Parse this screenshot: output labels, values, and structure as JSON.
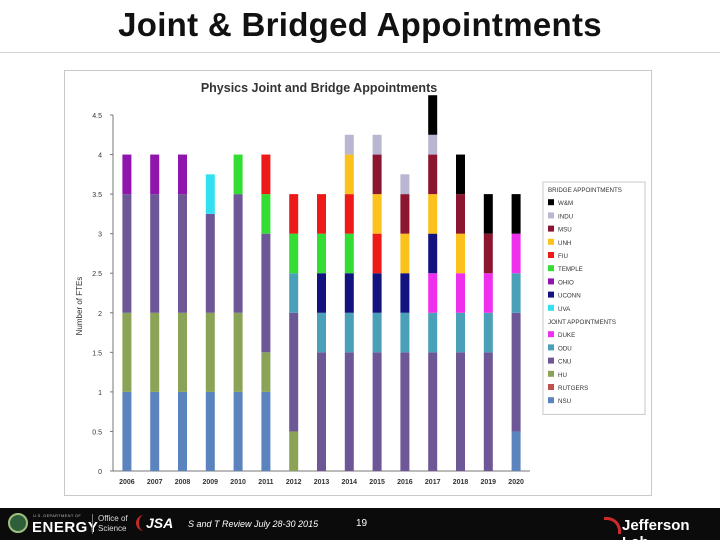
{
  "slide": {
    "title": "Joint & Bridged Appointments"
  },
  "footer": {
    "doe_small": "U.S. DEPARTMENT OF",
    "doe_word": "ENERGY",
    "office_line1": "Office of",
    "office_line2": "Science",
    "jsa": "JSA",
    "text": "S and T Review July 28-30 2015",
    "page": "19",
    "lab": "Jefferson Lab"
  },
  "colors": {
    "NSU": "#5b84be",
    "RUTGERS": "#c0504d",
    "HU": "#8ba357",
    "CNU": "#6e5797",
    "ODU": "#4aa0b8",
    "DUKE": "#ee2fee",
    "UVA": "#33e0f0",
    "UCONN": "#13137f",
    "OHIO": "#8f15ad",
    "TEMPLE": "#33dd33",
    "FIU": "#ee1a1a",
    "UNH": "#fbc11c",
    "MSU": "#8c1630",
    "INDU": "#b9b6d2",
    "W&M": "#000000"
  },
  "chart_data": {
    "type": "bar",
    "stacked": true,
    "title": "Physics Joint and Bridge Appointments",
    "xlabel": "",
    "ylabel": "Number of FTEs",
    "ylim": [
      0,
      4.5
    ],
    "y_ticks": [
      "0",
      "0.5",
      "1",
      "1.5",
      "2",
      "2.5",
      "3",
      "3.5",
      "4",
      "4.5"
    ],
    "categories": [
      "2006",
      "2007",
      "2008",
      "2009",
      "2010",
      "2011",
      "2012",
      "2013",
      "2014",
      "2015",
      "2016",
      "2017",
      "2018",
      "2019",
      "2020"
    ],
    "grid": false,
    "legend_placement": "right",
    "legend_groups": [
      {
        "heading": "BRIDGE APPOINTMENTS",
        "items": [
          "W&M",
          "INDU",
          "MSU",
          "UNH",
          "FIU",
          "TEMPLE",
          "OHIO",
          "UCONN",
          "UVA"
        ]
      },
      {
        "heading": "JOINT APPOINTMENTS",
        "items": [
          "DUKE",
          "ODU",
          "CNU",
          "HU",
          "RUTGERS",
          "NSU"
        ]
      }
    ],
    "series": [
      {
        "name": "NSU",
        "values": [
          1,
          1,
          1,
          1,
          1,
          1,
          0,
          0,
          0,
          0,
          0,
          0,
          0,
          0,
          0.5
        ]
      },
      {
        "name": "RUTGERS",
        "values": [
          0,
          0,
          0,
          0,
          0,
          0,
          0,
          0,
          0,
          0,
          0,
          0,
          0,
          0,
          0
        ]
      },
      {
        "name": "HU",
        "values": [
          1,
          1,
          1,
          1,
          1,
          0.5,
          0.5,
          0,
          0,
          0,
          0,
          0,
          0,
          0,
          0
        ]
      },
      {
        "name": "CNU",
        "values": [
          1.5,
          1.5,
          1.5,
          1.25,
          1.5,
          1.5,
          1.5,
          1.5,
          1.5,
          1.5,
          1.5,
          1.5,
          1.5,
          1.5,
          1.5
        ]
      },
      {
        "name": "ODU",
        "values": [
          0,
          0,
          0,
          0,
          0,
          0,
          0.5,
          0.5,
          0.5,
          0.5,
          0.5,
          0.5,
          0.5,
          0.5,
          0.5
        ]
      },
      {
        "name": "DUKE",
        "values": [
          0,
          0,
          0,
          0,
          0,
          0,
          0,
          0,
          0,
          0,
          0,
          0.5,
          0.5,
          0.5,
          0.5
        ]
      },
      {
        "name": "UVA",
        "values": [
          0,
          0,
          0,
          0.5,
          0,
          0,
          0,
          0,
          0,
          0,
          0,
          0,
          0,
          0,
          0
        ]
      },
      {
        "name": "UCONN",
        "values": [
          0,
          0,
          0,
          0,
          0,
          0,
          0,
          0.5,
          0.5,
          0.5,
          0.5,
          0.5,
          0,
          0,
          0
        ]
      },
      {
        "name": "OHIO",
        "values": [
          0.5,
          0.5,
          0.5,
          0,
          0,
          0,
          0,
          0,
          0,
          0,
          0,
          0,
          0,
          0,
          0
        ]
      },
      {
        "name": "TEMPLE",
        "values": [
          0,
          0,
          0,
          0,
          0.5,
          0.5,
          0.5,
          0.5,
          0.5,
          0,
          0,
          0,
          0,
          0,
          0
        ]
      },
      {
        "name": "FIU",
        "values": [
          0,
          0,
          0,
          0,
          0,
          0.5,
          0.5,
          0.5,
          0.5,
          0.5,
          0,
          0,
          0,
          0,
          0
        ]
      },
      {
        "name": "UNH",
        "values": [
          0,
          0,
          0,
          0,
          0,
          0,
          0,
          0,
          0.5,
          0.5,
          0.5,
          0.5,
          0.5,
          0,
          0
        ]
      },
      {
        "name": "MSU",
        "values": [
          0,
          0,
          0,
          0,
          0,
          0,
          0,
          0,
          0,
          0.5,
          0.5,
          0.5,
          0.5,
          0.5,
          0
        ]
      },
      {
        "name": "INDU",
        "values": [
          0,
          0,
          0,
          0,
          0,
          0,
          0,
          0,
          0.25,
          0.25,
          0.25,
          0.25,
          0,
          0,
          0
        ]
      },
      {
        "name": "W&M",
        "values": [
          0,
          0,
          0,
          0,
          0,
          0,
          0,
          0,
          0,
          0,
          0,
          0.5,
          0.5,
          0.5,
          0.5
        ]
      }
    ]
  }
}
